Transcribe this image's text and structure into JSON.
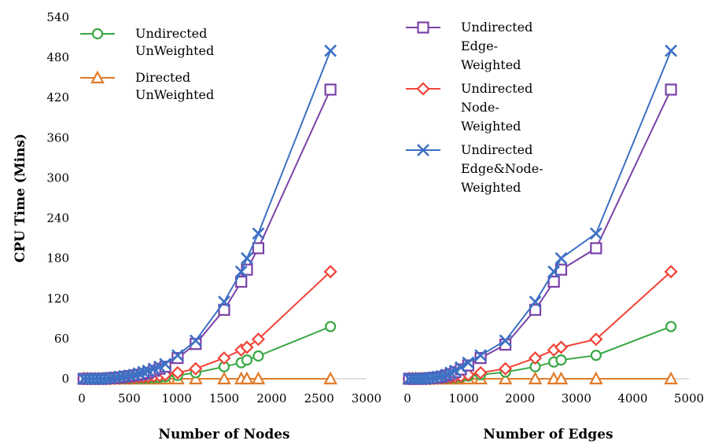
{
  "figure": {
    "ylabel": "CPU Time (Mins)",
    "y_ticks": [
      0,
      60,
      120,
      180,
      240,
      300,
      360,
      420,
      480,
      540
    ],
    "colors": {
      "green": "#3aa845",
      "orange": "#e07b2a",
      "purple": "#7a42a8",
      "red": "#f04336",
      "blue": "#3d71c4"
    }
  },
  "chart_data": [
    {
      "type": "line",
      "xlabel": "Number of Nodes",
      "ylabel": "CPU Time (Mins)",
      "xlim": [
        0,
        3000
      ],
      "ylim": [
        0,
        540
      ],
      "x_ticks": [
        0,
        500,
        1000,
        1500,
        2000,
        2500,
        3000
      ],
      "legend_position": "top-left",
      "series": [
        {
          "name": "Undirected UnWeighted",
          "legend_lines": [
            "Undirected",
            "UnWeighted"
          ],
          "color": "#3aa845",
          "marker": "circle",
          "in_legend": true,
          "x": [
            20,
            60,
            100,
            140,
            180,
            220,
            260,
            300,
            350,
            400,
            450,
            500,
            550,
            600,
            650,
            700,
            760,
            820,
            880,
            1010,
            1200,
            1500,
            1680,
            1740,
            1860,
            2620
          ],
          "y": [
            0,
            0,
            0,
            0,
            0,
            0,
            0,
            0,
            0,
            0,
            0,
            0,
            0.5,
            0.5,
            0.5,
            1,
            1.5,
            2,
            3,
            5,
            9,
            18,
            24,
            28,
            34,
            78
          ]
        },
        {
          "name": "Directed UnWeighted",
          "legend_lines": [
            "Directed",
            "UnWeighted"
          ],
          "color": "#e07b2a",
          "marker": "triangle",
          "in_legend": true,
          "x": [
            20,
            60,
            100,
            140,
            180,
            220,
            260,
            300,
            350,
            400,
            450,
            500,
            550,
            600,
            650,
            700,
            760,
            820,
            880,
            1010,
            1200,
            1500,
            1680,
            1740,
            1860,
            2620
          ],
          "y": [
            0,
            0,
            0,
            0,
            0,
            0,
            0,
            0,
            0,
            0,
            0,
            0,
            0,
            0,
            0,
            0,
            0,
            0,
            0,
            0,
            0,
            0,
            0,
            0,
            0,
            0
          ]
        },
        {
          "name": "Undirected Edge-Weighted",
          "color": "#7a42a8",
          "marker": "square",
          "in_legend": false,
          "x": [
            20,
            60,
            100,
            140,
            180,
            220,
            260,
            300,
            350,
            400,
            450,
            500,
            550,
            600,
            650,
            700,
            760,
            820,
            880,
            1010,
            1200,
            1500,
            1680,
            1740,
            1860,
            2620
          ],
          "y": [
            0,
            0,
            0,
            0,
            0,
            0,
            0.5,
            1,
            1.5,
            2,
            3,
            4,
            5,
            6,
            7,
            9,
            12,
            15,
            18,
            31,
            52,
            103,
            145,
            163,
            195,
            432
          ]
        },
        {
          "name": "Undirected Node-Weighted",
          "color": "#f04336",
          "marker": "diamond",
          "in_legend": false,
          "x": [
            20,
            60,
            100,
            140,
            180,
            220,
            260,
            300,
            350,
            400,
            450,
            500,
            550,
            600,
            650,
            700,
            760,
            820,
            880,
            1010,
            1200,
            1500,
            1680,
            1740,
            1860,
            2620
          ],
          "y": [
            0,
            0,
            0,
            0,
            0,
            0,
            0,
            0,
            0.5,
            0.5,
            1,
            1,
            1.5,
            2,
            2.5,
            3,
            4,
            5,
            6,
            9,
            15,
            31,
            43,
            47,
            59,
            160
          ]
        },
        {
          "name": "Undirected Edge&Node-Weighted",
          "color": "#3d71c4",
          "marker": "x",
          "in_legend": false,
          "x": [
            20,
            60,
            100,
            140,
            180,
            220,
            260,
            300,
            350,
            400,
            450,
            500,
            550,
            600,
            650,
            700,
            760,
            820,
            880,
            1010,
            1200,
            1500,
            1680,
            1740,
            1860,
            2620
          ],
          "y": [
            0,
            0,
            0,
            0,
            0,
            0,
            0.5,
            1,
            2,
            3,
            4,
            5,
            6,
            8,
            10,
            12,
            15,
            18,
            22,
            35,
            57,
            115,
            160,
            180,
            217,
            490
          ]
        }
      ]
    },
    {
      "type": "line",
      "xlabel": "Number of Edges",
      "xlim": [
        0,
        5000
      ],
      "ylim": [
        0,
        540
      ],
      "x_ticks": [
        0,
        1000,
        2000,
        3000,
        4000,
        5000
      ],
      "legend_position": "top-left",
      "series": [
        {
          "name": "Undirected UnWeighted",
          "color": "#3aa845",
          "marker": "circle",
          "in_legend": false,
          "x": [
            30,
            90,
            150,
            210,
            270,
            330,
            400,
            470,
            540,
            610,
            690,
            770,
            850,
            950,
            1080,
            1300,
            1740,
            2270,
            2600,
            2730,
            3350,
            4680
          ],
          "y": [
            0,
            0,
            0,
            0,
            0,
            0,
            0,
            0,
            0,
            0.5,
            0.5,
            1,
            1.5,
            2.5,
            4,
            6,
            10,
            18,
            25,
            28,
            35,
            78
          ]
        },
        {
          "name": "Directed UnWeighted",
          "color": "#e07b2a",
          "marker": "triangle",
          "in_legend": false,
          "x": [
            30,
            90,
            150,
            210,
            270,
            330,
            400,
            470,
            540,
            610,
            690,
            770,
            850,
            950,
            1080,
            1300,
            1740,
            2270,
            2600,
            2730,
            3350,
            4680
          ],
          "y": [
            0,
            0,
            0,
            0,
            0,
            0,
            0,
            0,
            0,
            0,
            0,
            0,
            0,
            0,
            0,
            0,
            0,
            0,
            0,
            0,
            0,
            0
          ]
        },
        {
          "name": "Undirected Edge-Weighted",
          "legend_lines": [
            "Undirected",
            "Edge-",
            "Weighted"
          ],
          "color": "#7a42a8",
          "marker": "square",
          "in_legend": true,
          "x": [
            30,
            90,
            150,
            210,
            270,
            330,
            400,
            470,
            540,
            610,
            690,
            770,
            850,
            950,
            1080,
            1300,
            1740,
            2270,
            2600,
            2730,
            3350,
            4680
          ],
          "y": [
            0,
            0,
            0,
            0,
            0,
            0.5,
            1,
            1.5,
            2,
            3,
            5,
            7,
            10,
            14,
            20,
            31,
            51,
            103,
            145,
            163,
            195,
            432
          ]
        },
        {
          "name": "Undirected Node-Weighted",
          "legend_lines": [
            "Undirected",
            "Node-",
            "Weighted"
          ],
          "color": "#f04336",
          "marker": "diamond",
          "in_legend": true,
          "x": [
            30,
            90,
            150,
            210,
            270,
            330,
            400,
            470,
            540,
            610,
            690,
            770,
            850,
            950,
            1080,
            1300,
            1740,
            2270,
            2600,
            2730,
            3350,
            4680
          ],
          "y": [
            0,
            0,
            0,
            0,
            0,
            0,
            0,
            0.5,
            1,
            1,
            1.5,
            2,
            3,
            4,
            6,
            9,
            15,
            31,
            43,
            47,
            59,
            160
          ]
        },
        {
          "name": "Undirected Edge&Node-Weighted",
          "legend_lines": [
            "Undirected",
            "Edge&Node-",
            "Weighted"
          ],
          "color": "#3d71c4",
          "marker": "x",
          "in_legend": true,
          "x": [
            30,
            90,
            150,
            210,
            270,
            330,
            400,
            470,
            540,
            610,
            690,
            770,
            850,
            950,
            1080,
            1300,
            1740,
            2270,
            2600,
            2730,
            3350,
            4680
          ],
          "y": [
            0,
            0,
            0,
            0,
            0,
            0.5,
            1,
            2,
            3,
            4,
            6,
            9,
            12,
            17,
            24,
            35,
            57,
            115,
            160,
            180,
            217,
            490
          ]
        }
      ]
    }
  ]
}
